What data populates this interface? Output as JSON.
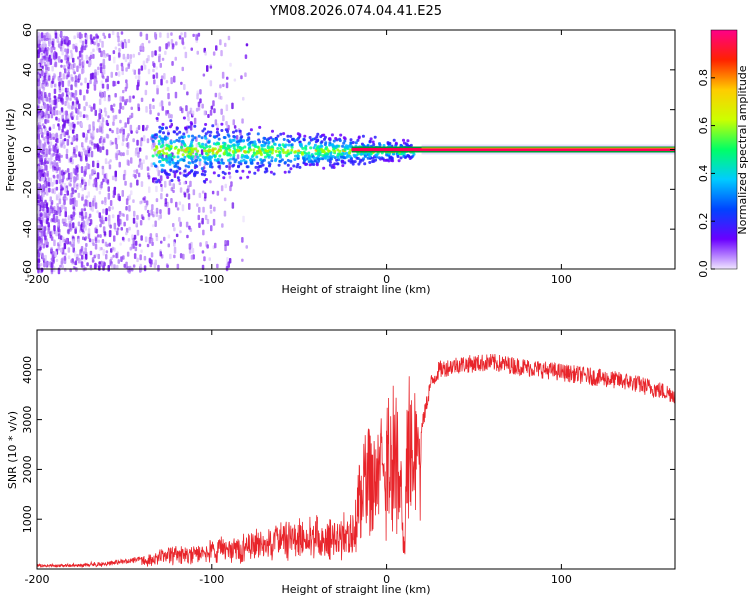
{
  "title": "YM08.2026.074.04.41.E25",
  "colors": {
    "snr_line": "#e8242a",
    "band_core": "#ff0055",
    "band_edge": "#009933",
    "scatter_purple": "#7a1cf0"
  },
  "chart_data": [
    {
      "type": "heatmap",
      "title": "YM08.2026.074.04.41.E25",
      "xlabel": "Height of straight line (km)",
      "ylabel": "Frequency (Hz)",
      "xlim": [
        -200,
        165
      ],
      "ylim": [
        -60,
        60
      ],
      "xticks": [
        -200,
        -100,
        0,
        100
      ],
      "yticks": [
        -60,
        -40,
        -20,
        0,
        20,
        40,
        60
      ],
      "colorbar": {
        "label": "Normalized spectral amplitude",
        "range": [
          0,
          1
        ],
        "ticks": [
          0.0,
          0.2,
          0.4,
          0.6,
          0.8
        ],
        "tick_labels": [
          "0.0",
          "0.2",
          "0.4",
          "0.6",
          "0.8"
        ],
        "colormap": [
          "#f0e6ff",
          "#6a00ff",
          "#0044ff",
          "#00ccff",
          "#00ff66",
          "#ccff00",
          "#ffcc00",
          "#ff2200",
          "#ff0088"
        ]
      },
      "regions": [
        {
          "x_range": [
            -200,
            -140
          ],
          "description": "broadband scatter",
          "amplitude": 0.15
        },
        {
          "x_range": [
            -140,
            -20
          ],
          "description": "broadened band around 0 Hz",
          "amplitude": 0.3
        },
        {
          "x_range": [
            20,
            165
          ],
          "description": "narrow band at 0 Hz",
          "amplitude": 0.95
        }
      ]
    },
    {
      "type": "line",
      "title": "",
      "xlabel": "Height of straight line (km)",
      "ylabel": "SNR (10 * v/v)",
      "xlim": [
        -200,
        165
      ],
      "ylim": [
        0,
        4800
      ],
      "xticks": [
        -200,
        -100,
        0,
        100
      ],
      "yticks": [
        1000,
        2000,
        3000,
        4000
      ],
      "series": [
        {
          "name": "SNR",
          "x": [
            -200,
            -180,
            -160,
            -140,
            -120,
            -100,
            -80,
            -60,
            -40,
            -30,
            -20,
            -15,
            -10,
            -5,
            0,
            5,
            8,
            10,
            12,
            15,
            20,
            25,
            30,
            40,
            60,
            80,
            100,
            120,
            140,
            165
          ],
          "y": [
            80,
            100,
            150,
            250,
            450,
            550,
            700,
            900,
            1000,
            900,
            1200,
            2200,
            2800,
            2600,
            3300,
            3600,
            2600,
            600,
            3800,
            3400,
            2800,
            3700,
            4000,
            4100,
            4150,
            4050,
            3950,
            3850,
            3750,
            3500
          ]
        }
      ]
    }
  ]
}
